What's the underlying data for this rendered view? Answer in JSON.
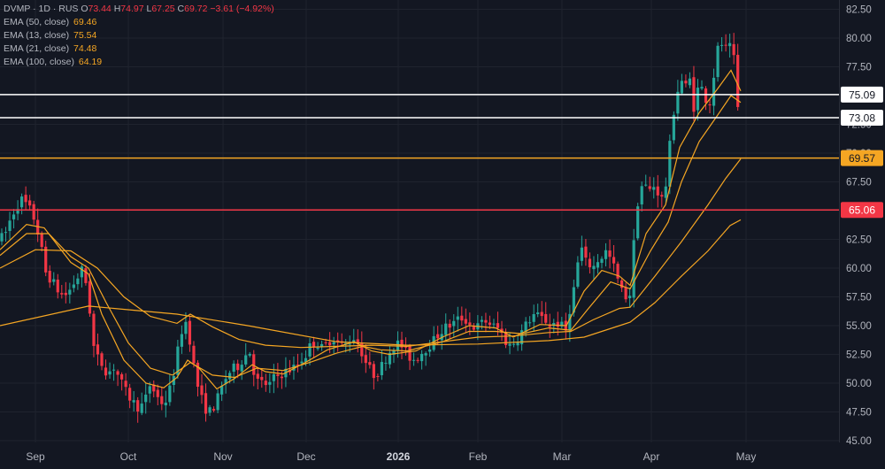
{
  "header": {
    "symbol_line": "DVMP · 1D · RUS",
    "o_label": "O",
    "o_value": "73.44",
    "h_label": "H",
    "h_value": "74.97",
    "l_label": "L",
    "l_value": "67.25",
    "c_label": "C",
    "c_value": "69.72",
    "change": "−3.61 (−4.92%)"
  },
  "indicators": [
    {
      "label": "EMA (50, close)",
      "value": "69.46"
    },
    {
      "label": "EMA (13, close)",
      "value": "75.54"
    },
    {
      "label": "EMA (21, close)",
      "value": "74.48"
    },
    {
      "label": "EMA (100, close)",
      "value": "64.19"
    }
  ],
  "colors": {
    "background": "#131722",
    "up": "#26a69a",
    "down": "#f23645",
    "ema": "#f5a623",
    "grid": "#1f232e",
    "axis_text": "#b2b5be"
  },
  "chart_data": {
    "type": "candlestick",
    "x_axis_labels": [
      "Sep",
      "Oct",
      "Nov",
      "Dec",
      "2026",
      "Feb",
      "Mar",
      "Apr",
      "May"
    ],
    "y_ticks": [
      "45.00",
      "47.50",
      "50.00",
      "52.50",
      "55.00",
      "57.50",
      "60.00",
      "62.50",
      "65.00",
      "67.50",
      "70.00",
      "72.50",
      "75.00",
      "77.50",
      "80.00",
      "82.50"
    ],
    "ylim": [
      45,
      83
    ],
    "levels": [
      {
        "value": 75.09,
        "label": "75.09",
        "color": "#ffffff"
      },
      {
        "value": 73.08,
        "label": "73.08",
        "color": "#ffffff"
      },
      {
        "value": 69.57,
        "label": "69.57",
        "color": "#f5a623"
      },
      {
        "value": 65.06,
        "label": "65.06",
        "color": "#f23645"
      }
    ],
    "price_path": [
      [
        0,
        62.5
      ],
      [
        6,
        63.0
      ],
      [
        12,
        64.3
      ],
      [
        18,
        65.3
      ],
      [
        24,
        66.0
      ],
      [
        30,
        65.5
      ],
      [
        36,
        64.8
      ],
      [
        40,
        64.0
      ],
      [
        46,
        62.0
      ],
      [
        52,
        59.5
      ],
      [
        58,
        59.0
      ],
      [
        66,
        58.0
      ],
      [
        72,
        57.5
      ],
      [
        78,
        58.0
      ],
      [
        86,
        59.0
      ],
      [
        94,
        60.0
      ],
      [
        100,
        57.5
      ],
      [
        103,
        55.0
      ],
      [
        107,
        52.5
      ],
      [
        115,
        51.7
      ],
      [
        122,
        50.8
      ],
      [
        128,
        51.5
      ],
      [
        134,
        50.6
      ],
      [
        140,
        49.5
      ],
      [
        146,
        48.8
      ],
      [
        152,
        48.2
      ],
      [
        158,
        47.8
      ],
      [
        164,
        48.5
      ],
      [
        170,
        50.0
      ],
      [
        176,
        49.0
      ],
      [
        182,
        48.3
      ],
      [
        188,
        48.5
      ],
      [
        194,
        50.0
      ],
      [
        199,
        52.0
      ],
      [
        205,
        54.5
      ],
      [
        211,
        55.5
      ],
      [
        216,
        53.0
      ],
      [
        221,
        50.5
      ],
      [
        226,
        49.0
      ],
      [
        232,
        47.8
      ],
      [
        238,
        47.5
      ],
      [
        244,
        48.3
      ],
      [
        250,
        49.5
      ],
      [
        256,
        50.6
      ],
      [
        262,
        51.2
      ],
      [
        268,
        51.4
      ],
      [
        276,
        52.3
      ],
      [
        282,
        52.8
      ],
      [
        287,
        51.0
      ],
      [
        292,
        50.0
      ],
      [
        298,
        50.0
      ],
      [
        304,
        49.8
      ],
      [
        310,
        50.5
      ],
      [
        316,
        50.7
      ],
      [
        322,
        51.0
      ],
      [
        328,
        51.2
      ],
      [
        334,
        51.4
      ],
      [
        340,
        52.0
      ],
      [
        346,
        52.5
      ],
      [
        352,
        53.5
      ],
      [
        358,
        53.5
      ],
      [
        364,
        53.0
      ],
      [
        370,
        53.5
      ],
      [
        376,
        54.0
      ],
      [
        382,
        53.5
      ],
      [
        388,
        53.2
      ],
      [
        394,
        53.6
      ],
      [
        400,
        54.0
      ],
      [
        406,
        53.3
      ],
      [
        412,
        52.0
      ],
      [
        418,
        51.2
      ],
      [
        424,
        50.6
      ],
      [
        430,
        51.3
      ],
      [
        436,
        52.2
      ],
      [
        442,
        53.0
      ],
      [
        448,
        53.5
      ],
      [
        454,
        53.2
      ],
      [
        460,
        52.5
      ],
      [
        466,
        52.0
      ],
      [
        472,
        52.3
      ],
      [
        478,
        52.8
      ],
      [
        484,
        53.2
      ],
      [
        490,
        53.7
      ],
      [
        496,
        54.3
      ],
      [
        502,
        54.8
      ],
      [
        508,
        55.0
      ],
      [
        514,
        55.3
      ],
      [
        520,
        55.7
      ],
      [
        526,
        55.5
      ],
      [
        532,
        55.0
      ],
      [
        538,
        54.8
      ],
      [
        544,
        55.2
      ],
      [
        550,
        55.4
      ],
      [
        556,
        55.0
      ],
      [
        562,
        54.8
      ],
      [
        568,
        54.2
      ],
      [
        574,
        53.2
      ],
      [
        580,
        53.5
      ],
      [
        586,
        54.0
      ],
      [
        592,
        54.8
      ],
      [
        598,
        55.5
      ],
      [
        604,
        56.0
      ],
      [
        610,
        55.7
      ],
      [
        616,
        55.5
      ],
      [
        622,
        55.0
      ],
      [
        628,
        55.3
      ],
      [
        634,
        55.0
      ],
      [
        640,
        54.5
      ],
      [
        644,
        56.5
      ],
      [
        648,
        58.0
      ],
      [
        652,
        60.0
      ],
      [
        656,
        62.0
      ],
      [
        660,
        61.0
      ],
      [
        664,
        60.0
      ],
      [
        668,
        60.5
      ],
      [
        672,
        60.0
      ],
      [
        676,
        60.8
      ],
      [
        680,
        61.0
      ],
      [
        684,
        61.5
      ],
      [
        688,
        61.0
      ],
      [
        692,
        60.5
      ],
      [
        696,
        59.5
      ],
      [
        700,
        58.5
      ],
      [
        704,
        57.7
      ],
      [
        708,
        57.5
      ],
      [
        712,
        57.8
      ],
      [
        716,
        62.0
      ],
      [
        720,
        65.5
      ],
      [
        724,
        67.0
      ],
      [
        728,
        67.5
      ],
      [
        732,
        66.5
      ],
      [
        736,
        67.0
      ],
      [
        740,
        67.2
      ],
      [
        744,
        66.5
      ],
      [
        748,
        66.0
      ],
      [
        752,
        67.0
      ],
      [
        756,
        70.0
      ],
      [
        760,
        73.0
      ],
      [
        764,
        75.0
      ],
      [
        768,
        76.0
      ],
      [
        772,
        76.5
      ],
      [
        776,
        75.5
      ],
      [
        780,
        76.5
      ],
      [
        784,
        74.0
      ],
      [
        788,
        75.5
      ],
      [
        792,
        75.8
      ],
      [
        796,
        75.0
      ],
      [
        800,
        74.3
      ],
      [
        804,
        74.6
      ],
      [
        808,
        78.0
      ],
      [
        812,
        79.3
      ],
      [
        816,
        79.5
      ],
      [
        820,
        79.0
      ],
      [
        824,
        79.2
      ],
      [
        828,
        78.8
      ],
      [
        831,
        77.0
      ],
      [
        834,
        73.5
      ],
      [
        837,
        69.7
      ]
    ],
    "ema13_path": [
      [
        0,
        61.6
      ],
      [
        30,
        63.8
      ],
      [
        50,
        63.5
      ],
      [
        80,
        60.5
      ],
      [
        100,
        59.5
      ],
      [
        115,
        56.0
      ],
      [
        140,
        52.0
      ],
      [
        165,
        50.0
      ],
      [
        185,
        49.6
      ],
      [
        200,
        50.5
      ],
      [
        212,
        52.0
      ],
      [
        225,
        51.3
      ],
      [
        245,
        49.5
      ],
      [
        265,
        50.4
      ],
      [
        285,
        51.6
      ],
      [
        300,
        51.0
      ],
      [
        320,
        50.8
      ],
      [
        345,
        51.8
      ],
      [
        370,
        52.9
      ],
      [
        400,
        53.6
      ],
      [
        420,
        52.8
      ],
      [
        440,
        52.5
      ],
      [
        470,
        52.8
      ],
      [
        500,
        54.0
      ],
      [
        530,
        55.0
      ],
      [
        560,
        54.8
      ],
      [
        580,
        54.0
      ],
      [
        610,
        55.1
      ],
      [
        640,
        55.0
      ],
      [
        660,
        58.0
      ],
      [
        680,
        59.8
      ],
      [
        700,
        59.3
      ],
      [
        712,
        58.5
      ],
      [
        730,
        63.0
      ],
      [
        752,
        65.5
      ],
      [
        768,
        70.5
      ],
      [
        790,
        73.5
      ],
      [
        810,
        75.5
      ],
      [
        826,
        77.2
      ],
      [
        837,
        75.4
      ]
    ],
    "ema21_path": [
      [
        0,
        61.1
      ],
      [
        30,
        63.0
      ],
      [
        55,
        63.0
      ],
      [
        80,
        61.0
      ],
      [
        100,
        60.0
      ],
      [
        120,
        57.0
      ],
      [
        145,
        53.5
      ],
      [
        170,
        51.3
      ],
      [
        195,
        50.7
      ],
      [
        215,
        51.8
      ],
      [
        240,
        50.7
      ],
      [
        265,
        50.5
      ],
      [
        290,
        51.3
      ],
      [
        320,
        51.1
      ],
      [
        350,
        51.8
      ],
      [
        380,
        52.6
      ],
      [
        410,
        53.2
      ],
      [
        430,
        52.9
      ],
      [
        460,
        52.8
      ],
      [
        500,
        53.6
      ],
      [
        530,
        54.5
      ],
      [
        560,
        54.5
      ],
      [
        590,
        54.3
      ],
      [
        620,
        54.8
      ],
      [
        645,
        54.6
      ],
      [
        665,
        56.5
      ],
      [
        690,
        58.8
      ],
      [
        712,
        58.2
      ],
      [
        735,
        61.5
      ],
      [
        755,
        64.0
      ],
      [
        770,
        67.5
      ],
      [
        790,
        71.0
      ],
      [
        810,
        73.2
      ],
      [
        826,
        75.0
      ],
      [
        837,
        74.4
      ]
    ],
    "ema50_path": [
      [
        0,
        60.0
      ],
      [
        40,
        61.6
      ],
      [
        80,
        61.5
      ],
      [
        110,
        60.0
      ],
      [
        140,
        57.5
      ],
      [
        170,
        55.8
      ],
      [
        200,
        55.2
      ],
      [
        215,
        56.0
      ],
      [
        240,
        54.9
      ],
      [
        270,
        53.8
      ],
      [
        300,
        53.3
      ],
      [
        340,
        53.1
      ],
      [
        380,
        53.2
      ],
      [
        420,
        53.3
      ],
      [
        460,
        53.2
      ],
      [
        500,
        53.6
      ],
      [
        540,
        54.0
      ],
      [
        580,
        54.1
      ],
      [
        620,
        54.4
      ],
      [
        645,
        54.5
      ],
      [
        670,
        55.5
      ],
      [
        700,
        56.5
      ],
      [
        712,
        56.6
      ],
      [
        740,
        59.3
      ],
      [
        770,
        62.3
      ],
      [
        800,
        65.5
      ],
      [
        820,
        67.8
      ],
      [
        837,
        69.5
      ]
    ],
    "ema100_path": [
      [
        0,
        55.0
      ],
      [
        100,
        56.7
      ],
      [
        200,
        56.0
      ],
      [
        280,
        55.0
      ],
      [
        380,
        53.6
      ],
      [
        460,
        53.3
      ],
      [
        540,
        53.4
      ],
      [
        620,
        53.7
      ],
      [
        660,
        54.0
      ],
      [
        700,
        55.0
      ],
      [
        712,
        55.3
      ],
      [
        740,
        57.0
      ],
      [
        770,
        59.3
      ],
      [
        800,
        61.5
      ],
      [
        825,
        63.7
      ],
      [
        837,
        64.2
      ]
    ]
  }
}
